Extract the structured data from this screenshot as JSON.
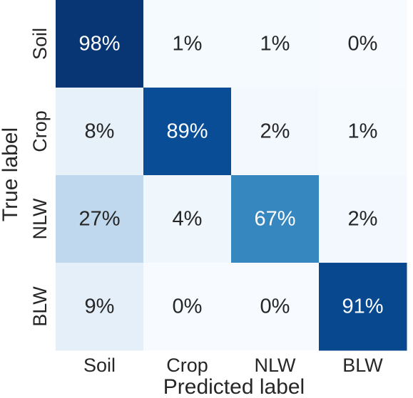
{
  "chart_data": {
    "type": "heatmap",
    "xlabel": "Predicted label",
    "ylabel": "True label",
    "x_categories": [
      "Soil",
      "Crop",
      "NLW",
      "BLW"
    ],
    "y_categories": [
      "Soil",
      "Crop",
      "NLW",
      "BLW"
    ],
    "values": [
      [
        98,
        1,
        1,
        0
      ],
      [
        8,
        89,
        2,
        1
      ],
      [
        27,
        4,
        67,
        2
      ],
      [
        9,
        0,
        0,
        91
      ]
    ],
    "value_format": "percent",
    "colormap": "Blues",
    "vmin": 0,
    "vmax": 100,
    "colors": {
      "low": "#f7fbff",
      "high": "#08306b",
      "text_dark": "#262626",
      "text_light": "#ffffff"
    }
  }
}
